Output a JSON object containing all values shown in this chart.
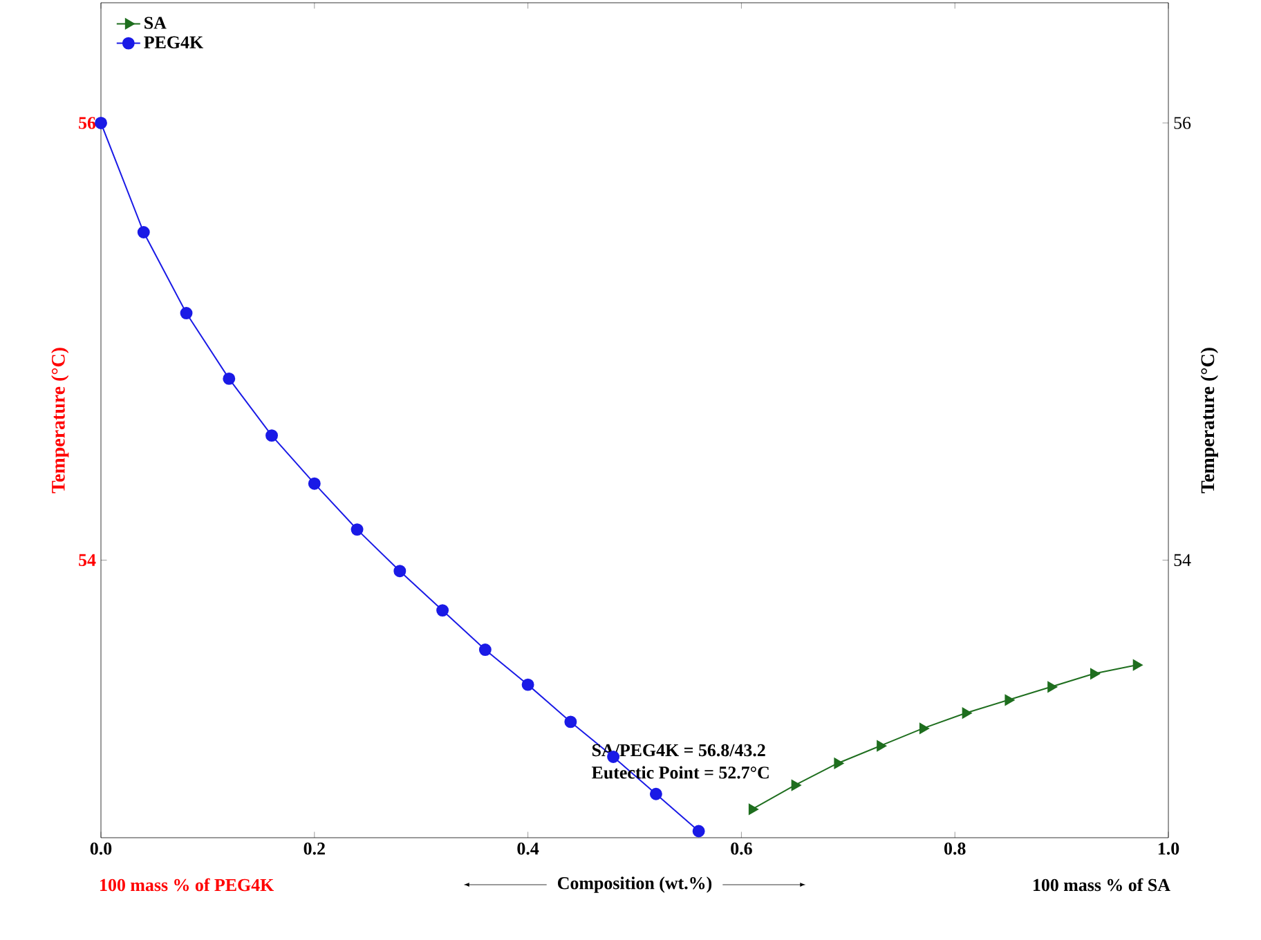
{
  "chart_data": {
    "type": "line",
    "xlabel": "Composition (wt.%)",
    "ylabel": "Temperature (°C)",
    "y2label": "Temperature (°C)",
    "xlim": [
      0,
      1.0
    ],
    "xticks": [
      {
        "value": 0,
        "label": "0.0"
      },
      0.2,
      0.4,
      0.6,
      0.8,
      {
        "value": 1,
        "label": "1.0"
      }
    ],
    "ylim": [
      52.73,
      56.55
    ],
    "yticks": [
      54,
      56
    ],
    "y2lim": [
      52.73,
      56.55
    ],
    "y2ticks": [
      54,
      56
    ],
    "grid": false,
    "legend": "top left",
    "annotations": [
      "SA/PEG4K = 56.8/43.2",
      "Eutectic Point = 52.7°C",
      "100 mass % of PEG4K",
      "100 mass % of SA"
    ],
    "series": [
      {
        "name": "SA",
        "color": "#1e6e1e",
        "marker": "triangle",
        "x": [
          0.61,
          0.65,
          0.69,
          0.73,
          0.77,
          0.81,
          0.85,
          0.89,
          0.93,
          0.97
        ],
        "values": [
          52.86,
          52.97,
          53.07,
          53.15,
          53.23,
          53.3,
          53.36,
          53.42,
          53.48,
          53.52
        ]
      },
      {
        "name": "PEG4K",
        "color": "#1a1ae6",
        "marker": "circle",
        "x": [
          0,
          0.04,
          0.08,
          0.12,
          0.16,
          0.2,
          0.24,
          0.28,
          0.32,
          0.36,
          0.4,
          0.44,
          0.48,
          0.52,
          0.56
        ],
        "values": [
          56.0,
          55.5,
          55.13,
          54.83,
          54.57,
          54.35,
          54.14,
          53.95,
          53.77,
          53.59,
          53.43,
          53.26,
          53.1,
          52.93,
          52.76
        ]
      }
    ]
  }
}
